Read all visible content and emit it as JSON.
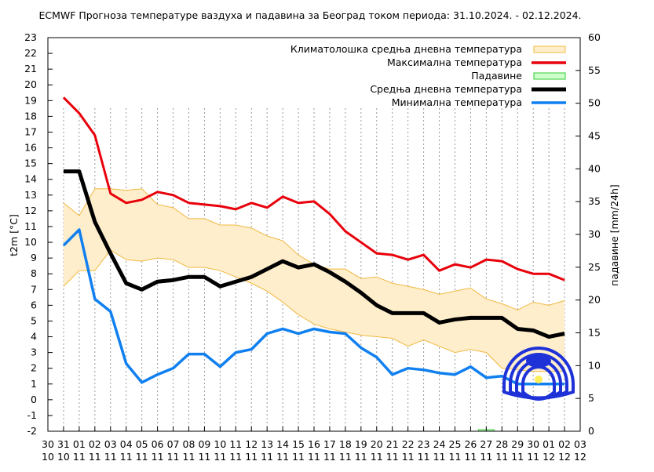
{
  "chart_data": {
    "type": "line",
    "title": "ECMWF Прогноза температуре ваздуха и падавина за Београд током периода: 31.10.2024. - 02.12.2024.",
    "ylabel": "t2m [°C]",
    "y2label": "падавине [mm/24h]",
    "ylim": [
      -2,
      23
    ],
    "y2lim": [
      0,
      60
    ],
    "legend_position": "top-right",
    "grid": "vertical dotted lines per day",
    "x_ticks": [
      [
        "30",
        "10"
      ],
      [
        "31",
        "10"
      ],
      [
        "01",
        "11"
      ],
      [
        "02",
        "11"
      ],
      [
        "03",
        "11"
      ],
      [
        "04",
        "11"
      ],
      [
        "05",
        "11"
      ],
      [
        "06",
        "11"
      ],
      [
        "07",
        "11"
      ],
      [
        "08",
        "11"
      ],
      [
        "09",
        "11"
      ],
      [
        "10",
        "11"
      ],
      [
        "11",
        "11"
      ],
      [
        "12",
        "11"
      ],
      [
        "13",
        "11"
      ],
      [
        "14",
        "11"
      ],
      [
        "15",
        "11"
      ],
      [
        "16",
        "11"
      ],
      [
        "17",
        "11"
      ],
      [
        "18",
        "11"
      ],
      [
        "19",
        "11"
      ],
      [
        "20",
        "11"
      ],
      [
        "21",
        "11"
      ],
      [
        "22",
        "11"
      ],
      [
        "23",
        "11"
      ],
      [
        "24",
        "11"
      ],
      [
        "25",
        "11"
      ],
      [
        "26",
        "11"
      ],
      [
        "27",
        "11"
      ],
      [
        "28",
        "11"
      ],
      [
        "29",
        "11"
      ],
      [
        "30",
        "11"
      ],
      [
        "01",
        "12"
      ],
      [
        "02",
        "12"
      ],
      [
        "03",
        "12"
      ]
    ],
    "x": [
      "31.10",
      "01.11",
      "02.11",
      "03.11",
      "04.11",
      "05.11",
      "06.11",
      "07.11",
      "08.11",
      "09.11",
      "10.11",
      "11.11",
      "12.11",
      "13.11",
      "14.11",
      "15.11",
      "16.11",
      "17.11",
      "18.11",
      "19.11",
      "20.11",
      "21.11",
      "22.11",
      "23.11",
      "24.11",
      "25.11",
      "26.11",
      "27.11",
      "28.11",
      "29.11",
      "30.11",
      "01.12",
      "02.12"
    ],
    "climatology_band": {
      "name": "Климатолошка средња дневна температура",
      "color": "#ffeecc",
      "edge_color": "#f0b840",
      "upper": [
        12.5,
        11.7,
        13.4,
        13.4,
        13.3,
        13.4,
        12.4,
        12.2,
        11.5,
        11.5,
        11.1,
        11.1,
        10.9,
        10.4,
        10.1,
        9.2,
        8.6,
        8.3,
        8.3,
        7.7,
        7.8,
        7.4,
        7.2,
        7.0,
        6.7,
        6.9,
        7.1,
        6.4,
        6.1,
        5.7,
        6.2,
        6.0,
        6.3
      ],
      "lower": [
        7.2,
        8.2,
        8.2,
        9.5,
        8.9,
        8.8,
        9.0,
        8.9,
        8.4,
        8.4,
        8.2,
        7.8,
        7.4,
        6.9,
        6.2,
        5.4,
        4.8,
        4.5,
        4.3,
        4.1,
        4.0,
        3.9,
        3.4,
        3.8,
        3.4,
        3.0,
        3.2,
        3.0,
        2.0,
        1.9,
        1.8,
        1.8,
        1.8
      ]
    },
    "series": [
      {
        "name": "Максимална температура",
        "color": "#e8000b",
        "values": [
          19.2,
          18.2,
          16.8,
          13.1,
          12.5,
          12.7,
          13.2,
          13.0,
          12.5,
          12.4,
          12.3,
          12.1,
          12.5,
          12.2,
          12.9,
          12.5,
          12.6,
          11.8,
          10.7,
          10.0,
          9.3,
          9.2,
          8.9,
          9.2,
          8.2,
          8.6,
          8.4,
          8.9,
          8.8,
          8.3,
          8.0,
          8.0,
          7.6
        ]
      },
      {
        "name": "Средња дневна температура",
        "color": "#000000",
        "values": [
          14.5,
          14.5,
          11.3,
          9.3,
          7.4,
          7.0,
          7.5,
          7.6,
          7.8,
          7.8,
          7.2,
          7.5,
          7.8,
          8.3,
          8.8,
          8.4,
          8.6,
          8.1,
          7.5,
          6.8,
          6.0,
          5.5,
          5.5,
          5.5,
          4.9,
          5.1,
          5.2,
          5.2,
          5.2,
          4.5,
          4.4,
          4.0,
          4.2
        ]
      },
      {
        "name": "Минимална температура",
        "color": "#1080f0",
        "values": [
          9.8,
          10.8,
          6.4,
          5.6,
          2.3,
          1.1,
          1.6,
          2.0,
          2.9,
          2.9,
          2.1,
          3.0,
          3.2,
          4.2,
          4.5,
          4.2,
          4.5,
          4.3,
          4.2,
          3.3,
          2.7,
          1.6,
          2.0,
          1.9,
          1.7,
          1.6,
          2.1,
          1.4,
          1.5,
          1.0,
          1.0,
          1.0,
          1.0
        ]
      }
    ],
    "precipitation": {
      "name": "Падавине",
      "color": "#ccffcc",
      "edge_color": "#33cc33",
      "values": [
        0,
        0,
        0,
        0,
        0,
        0,
        0,
        0,
        0,
        0,
        0,
        0,
        0,
        0,
        0,
        0,
        0,
        0,
        0,
        0,
        0,
        0,
        0,
        0,
        0,
        0,
        0,
        0.1,
        0,
        0,
        0,
        0,
        0
      ]
    }
  }
}
